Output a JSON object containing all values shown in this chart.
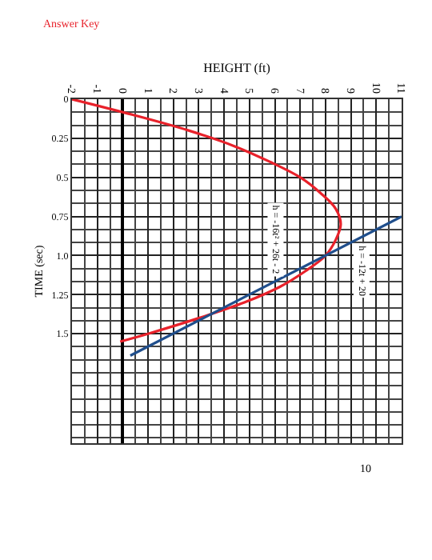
{
  "chart_data": {
    "type": "line",
    "title": "Answer Key",
    "xlabel": "HEIGHT (ft)",
    "ylabel": "TIME (sec)",
    "xlim": [
      -2,
      11
    ],
    "xticks": [
      -2,
      -1,
      0,
      1,
      2,
      3,
      4,
      5,
      6,
      7,
      8,
      9,
      10,
      11
    ],
    "ylim": [
      2.2,
      0
    ],
    "yticks": [
      {
        "value": 0,
        "label": "0"
      },
      0.25,
      0.5,
      0.75,
      {
        "value": 1,
        "label": "1.0"
      },
      1.25,
      1.5
    ],
    "grid": true,
    "marker": "none",
    "line_style": "solid",
    "series": [
      {
        "color": "#e8212a",
        "x": [
          -2,
          0.4,
          2.6,
          4.4,
          5.8,
          7,
          7.8,
          8.4,
          8.6,
          8.4,
          8,
          7.2,
          6.2,
          4.8,
          3,
          1,
          -0.1
        ],
        "values": [
          0,
          0.1,
          0.2,
          0.3,
          0.4,
          0.5,
          0.6,
          0.7,
          0.8,
          0.9,
          1.0,
          1.1,
          1.2,
          1.3,
          1.4,
          1.5,
          1.55
        ]
      },
      {
        "color": "#1f4e8c",
        "x": [
          11,
          0.3
        ],
        "values": [
          0.75,
          1.64
        ]
      }
    ],
    "annotations": [
      "h = -16t² + 26t - 2",
      "h = -12t + 20",
      "10"
    ]
  }
}
